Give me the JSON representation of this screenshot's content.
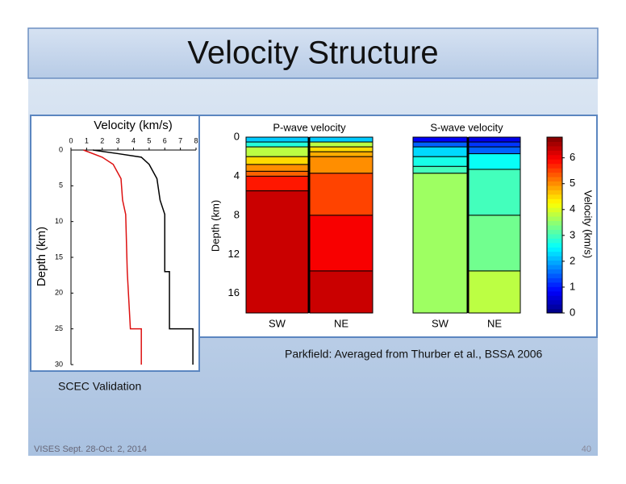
{
  "title": "Velocity Structure",
  "caption_left": "SCEC Validation",
  "caption_right": "Parkfield: Averaged from Thurber et al., BSSA 2006",
  "footer": "VISES Sept. 28-Oct. 2, 2014",
  "page_number": "40",
  "chart_data": [
    {
      "type": "line",
      "title": "Velocity (km/s)",
      "y_label": "Depth (km)",
      "xlim": [
        0,
        8
      ],
      "xticks": [
        0,
        1,
        2,
        3,
        4,
        5,
        6,
        7,
        8
      ],
      "ylim": [
        0,
        30
      ],
      "yticks": [
        0,
        5,
        10,
        15,
        20,
        25,
        30
      ],
      "y_inverted": true,
      "x_axis_position": "top",
      "series": [
        {
          "color": "#000000",
          "x": [
            1.4,
            3.0,
            4.5,
            5.0,
            5.5,
            5.7,
            6.0,
            6.0,
            6.3,
            6.3,
            7.8,
            7.8
          ],
          "y": [
            0,
            0.5,
            1,
            2,
            4,
            7,
            9,
            17,
            17,
            25,
            25,
            30
          ]
        },
        {
          "color": "#dd1111",
          "x": [
            0.8,
            2.0,
            2.7,
            3.2,
            3.3,
            3.5,
            3.6,
            3.8,
            4.5,
            4.5
          ],
          "y": [
            0,
            1,
            2,
            4,
            7,
            9,
            17,
            25,
            25,
            30
          ]
        }
      ]
    },
    {
      "type": "layers",
      "y_label": "Depth (km)",
      "colorbar_label": "Velocity (km/s)",
      "colormap": "jet",
      "ylim": [
        0,
        18
      ],
      "yticks": [
        0,
        4,
        8,
        12,
        16
      ],
      "clim": [
        0,
        6.8
      ],
      "cticks": [
        0,
        1,
        2,
        3,
        4,
        5,
        6
      ],
      "panels": [
        {
          "name": "P-wave velocity",
          "columns": [
            {
              "name": "SW",
              "bounds": [
                0,
                0.5,
                1,
                2,
                2.8,
                3.5,
                4,
                5.5,
                18
              ],
              "values": [
                2.2,
                2.8,
                3.8,
                4.5,
                5.0,
                5.3,
                5.8,
                6.3
              ]
            },
            {
              "name": "NE",
              "bounds": [
                0,
                0.5,
                1,
                1.5,
                2,
                3.7,
                8,
                13.7,
                18
              ],
              "values": [
                2.2,
                3.8,
                4.5,
                4.8,
                5.0,
                5.5,
                6.0,
                6.3
              ]
            }
          ]
        },
        {
          "name": "S-wave velocity",
          "columns": [
            {
              "name": "SW",
              "bounds": [
                0,
                0.5,
                1,
                2,
                3,
                3.7,
                18
              ],
              "values": [
                0.8,
                1.5,
                2.3,
                2.7,
                3.0,
                3.6
              ]
            },
            {
              "name": "NE",
              "bounds": [
                0,
                0.5,
                1,
                1.7,
                3.3,
                8,
                13.7,
                18
              ],
              "values": [
                0.7,
                1.2,
                1.5,
                2.6,
                3.0,
                3.3,
                3.8
              ]
            }
          ]
        }
      ]
    }
  ]
}
